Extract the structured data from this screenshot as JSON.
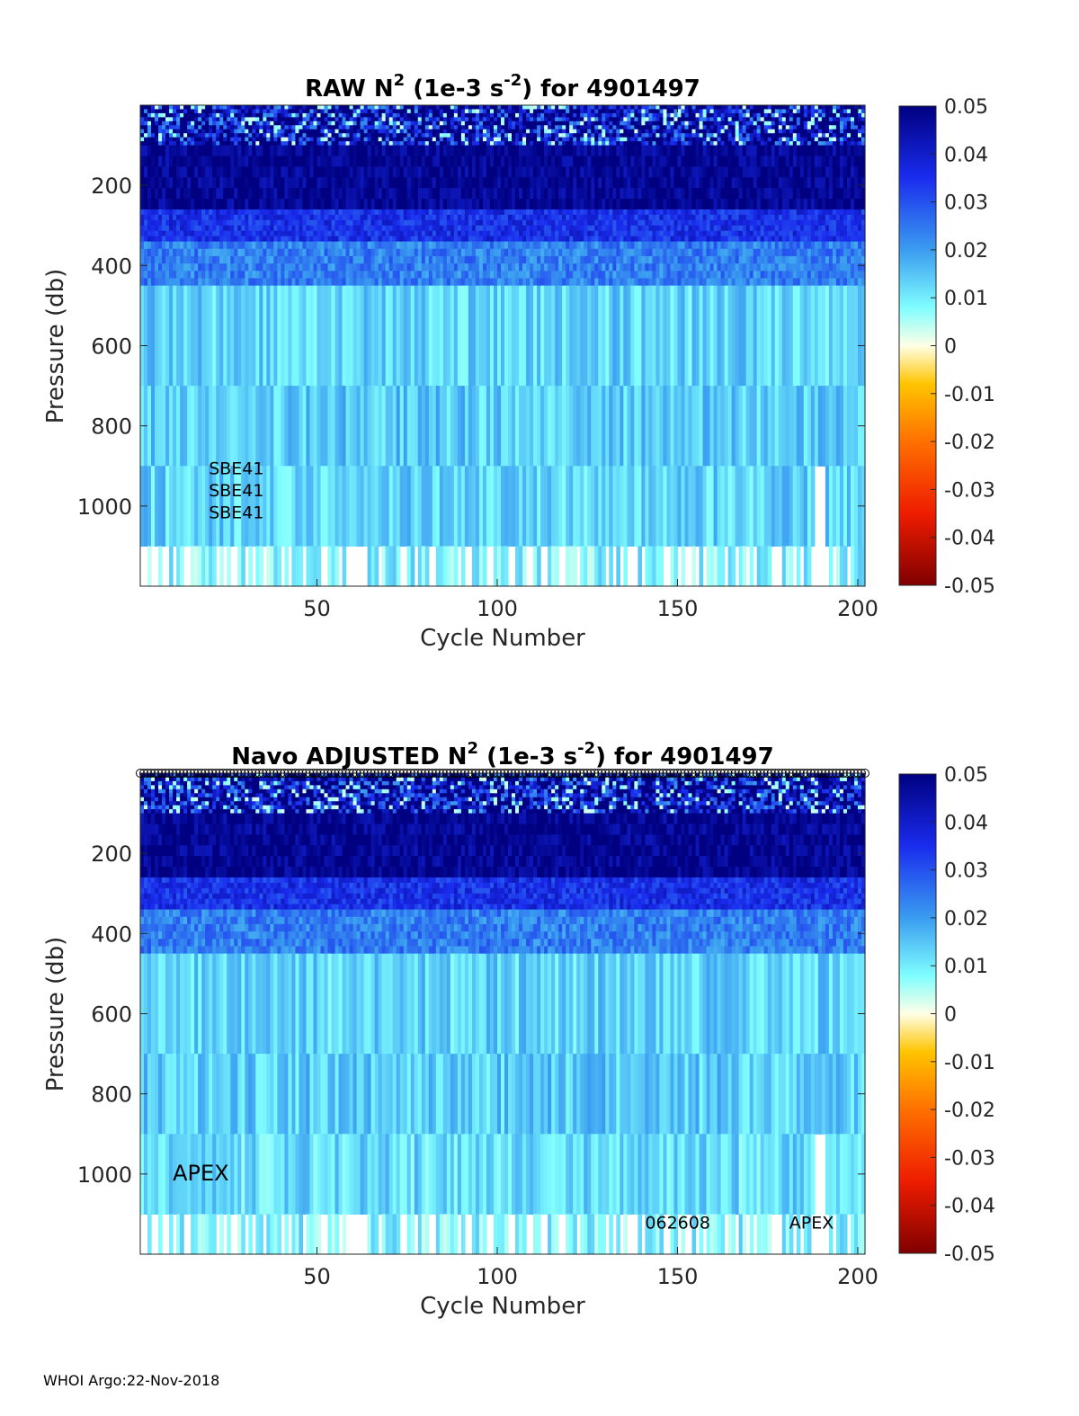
{
  "footer": "WHOI Argo:22-Nov-2018",
  "colormap": {
    "name": "blue-cyan-white-orange-red diverging",
    "stops": [
      {
        "v": -0.05,
        "c": "#800000"
      },
      {
        "v": -0.035,
        "c": "#ee1c00"
      },
      {
        "v": -0.02,
        "c": "#ff7000"
      },
      {
        "v": -0.008,
        "c": "#ffc400"
      },
      {
        "v": 0.0,
        "c": "#ffffe6"
      },
      {
        "v": 0.008,
        "c": "#7ffdff"
      },
      {
        "v": 0.02,
        "c": "#3a9cf0"
      },
      {
        "v": 0.035,
        "c": "#1a2cee"
      },
      {
        "v": 0.05,
        "c": "#000080"
      }
    ]
  },
  "chart_data": [
    {
      "type": "heatmap",
      "title": {
        "pre": "RAW N",
        "sup1": "2",
        "mid": " (1e-3 s",
        "sup2": "-2",
        "post": ") for 4901497"
      },
      "xlabel": "Cycle Number",
      "ylabel": "Pressure (db)",
      "xlim": [
        1,
        202
      ],
      "ylim": [
        0,
        1200
      ],
      "xticks": [
        "50",
        "100",
        "150",
        "200"
      ],
      "xtick_values": [
        50,
        100,
        150,
        200
      ],
      "yticks": [
        "200",
        "400",
        "600",
        "800",
        "1000"
      ],
      "ytick_values": [
        200,
        400,
        600,
        800,
        1000
      ],
      "colorbar": {
        "range": [
          -0.05,
          0.05
        ],
        "ticks": [
          "0.05",
          "0.04",
          "0.03",
          "0.02",
          "0.01",
          "0",
          "-0.01",
          "-0.02",
          "-0.03",
          "-0.04",
          "-0.05"
        ]
      },
      "annotations": [
        {
          "id": "sbe1",
          "text": "SBE41",
          "x": 20,
          "y": 905
        },
        {
          "id": "sbe2",
          "text": "SBE41",
          "x": 20,
          "y": 960
        },
        {
          "id": "sbe3",
          "text": "SBE41",
          "x": 20,
          "y": 1015
        }
      ],
      "layers_mean_n2": [
        {
          "p_top": 0,
          "p_bot": 100,
          "value": 0.045,
          "note": "near-surface, patchy"
        },
        {
          "p_top": 100,
          "p_bot": 260,
          "value": 0.048
        },
        {
          "p_top": 260,
          "p_bot": 340,
          "value": 0.035
        },
        {
          "p_top": 340,
          "p_bot": 450,
          "value": 0.024
        },
        {
          "p_top": 450,
          "p_bot": 700,
          "value": 0.013
        },
        {
          "p_top": 700,
          "p_bot": 900,
          "value": 0.014
        },
        {
          "p_top": 900,
          "p_bot": 1100,
          "value": 0.013
        },
        {
          "p_top": 1100,
          "p_bot": 1200,
          "value": 0.009,
          "note": "many missing cycles"
        }
      ]
    },
    {
      "type": "heatmap",
      "title": {
        "pre": "Navo  ADJUSTED N",
        "sup1": "2",
        "mid": " (1e-3 s",
        "sup2": "-2",
        "post": ") for 4901497"
      },
      "xlabel": "Cycle Number",
      "ylabel": "Pressure (db)",
      "xlim": [
        1,
        202
      ],
      "ylim": [
        0,
        1200
      ],
      "xticks": [
        "50",
        "100",
        "150",
        "200"
      ],
      "xtick_values": [
        50,
        100,
        150,
        200
      ],
      "yticks": [
        "200",
        "400",
        "600",
        "800",
        "1000"
      ],
      "ytick_values": [
        200,
        400,
        600,
        800,
        1000
      ],
      "colorbar": {
        "range": [
          -0.05,
          0.05
        ],
        "ticks": [
          "0.05",
          "0.04",
          "0.03",
          "0.02",
          "0.01",
          "0",
          "-0.01",
          "-0.02",
          "-0.03",
          "-0.04",
          "-0.05"
        ]
      },
      "annotations": [
        {
          "id": "apex1",
          "text": "APEX",
          "x": 10,
          "y": 1000,
          "big": true
        },
        {
          "id": "serial",
          "text": "062608",
          "x": 141,
          "y": 1120
        },
        {
          "id": "apex2",
          "text": "APEX",
          "x": 181,
          "y": 1120
        }
      ],
      "surface_markers": "open circles at 0 db for every cycle",
      "layers_mean_n2": [
        {
          "p_top": 0,
          "p_bot": 100,
          "value": 0.045
        },
        {
          "p_top": 100,
          "p_bot": 260,
          "value": 0.048
        },
        {
          "p_top": 260,
          "p_bot": 340,
          "value": 0.035
        },
        {
          "p_top": 340,
          "p_bot": 450,
          "value": 0.024
        },
        {
          "p_top": 450,
          "p_bot": 700,
          "value": 0.013
        },
        {
          "p_top": 700,
          "p_bot": 900,
          "value": 0.014
        },
        {
          "p_top": 900,
          "p_bot": 1100,
          "value": 0.012
        },
        {
          "p_top": 1100,
          "p_bot": 1200,
          "value": 0.009,
          "note": "many missing cycles"
        }
      ]
    }
  ]
}
